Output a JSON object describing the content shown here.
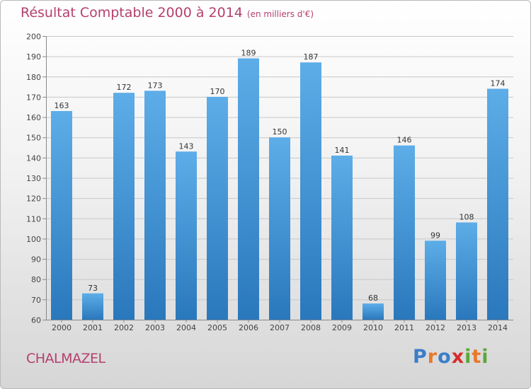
{
  "title": {
    "main": "Résultat Comptable 2000 à 2014",
    "unit": "(en milliers d'€)"
  },
  "commune": "CHALMAZEL",
  "logo": {
    "letters": [
      "P",
      "r",
      "o",
      "x",
      "i",
      "t",
      "i"
    ],
    "colors": [
      "#3a7ec9",
      "#e8792a",
      "#3a7ec9",
      "#d62d2d",
      "#5aa83a",
      "#e8792a",
      "#5aa83a"
    ]
  },
  "colors": {
    "bar_top": "#5dade8",
    "bar_bottom": "#2a78bc",
    "grid": "#c8c8c8"
  },
  "chart_data": {
    "type": "bar",
    "title": "Résultat Comptable 2000 à 2014",
    "subtitle": "(en milliers d'€)",
    "categories": [
      "2000",
      "2001",
      "2002",
      "2003",
      "2004",
      "2005",
      "2006",
      "2007",
      "2008",
      "2009",
      "2010",
      "2011",
      "2012",
      "2013",
      "2014"
    ],
    "values": [
      163,
      73,
      172,
      173,
      143,
      170,
      189,
      150,
      187,
      141,
      68,
      146,
      99,
      108,
      174
    ],
    "ylim": [
      60,
      200
    ],
    "yticks": [
      60,
      70,
      80,
      90,
      100,
      110,
      120,
      130,
      140,
      150,
      160,
      170,
      180,
      190,
      200
    ],
    "grid": true,
    "data_labels": true
  }
}
